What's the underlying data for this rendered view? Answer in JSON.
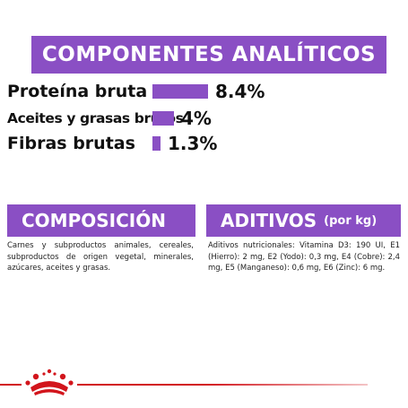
{
  "header": {
    "title": "COMPONENTES ANALÍTICOS"
  },
  "analytics": [
    {
      "label": "Proteína bruta",
      "value": "8.4%",
      "fraction": 0.084
    },
    {
      "label": "Aceites y grasas brutos",
      "value": "4%",
      "fraction": 0.04
    },
    {
      "label": "Fibras brutas",
      "value": "1.3%",
      "fraction": 0.013
    }
  ],
  "composition": {
    "title": "COMPOSICIÓN",
    "text": "Carnes y subproductos animales, cereales, subproductos de origen vegetal, minerales, azúcares, aceites y grasas."
  },
  "additives": {
    "title": "ADITIVOS",
    "unit": "(por kg)",
    "text": "Aditivos nutricionales: Vitamina D3: 190 UI, E1 (Hierro): 2 mg, E2 (Yodo): 0,3 mg, E4 (Cobre): 2,4 mg, E5 (Manganeso): 0,6 mg, E6 (Zinc): 6 mg."
  },
  "brand": {
    "logo_icon": "royal-canin-crown-icon",
    "accent_color": "#d2151c",
    "panel_color": "#8a4fc4"
  }
}
